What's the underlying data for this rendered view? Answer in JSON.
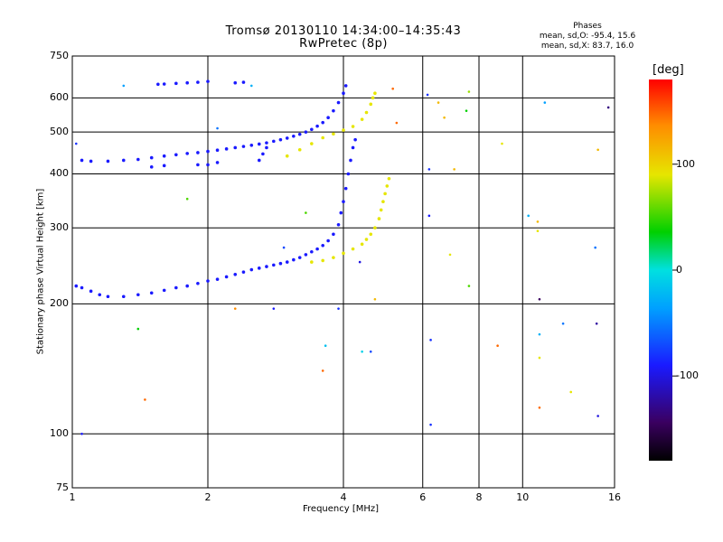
{
  "chart_data": {
    "type": "scatter",
    "title": "Tromsø 20130110 14:34:00–14:35:43",
    "subtitle": "RwPretec (8p)",
    "xlabel": "Frequency [MHz]",
    "ylabel": "Stationary phase Virtual Height [km]",
    "xscale": "log",
    "yscale": "log",
    "xlim": [
      1,
      16
    ],
    "ylim": [
      75,
      750
    ],
    "x_ticks": [
      "1",
      "2",
      "4",
      "6",
      "8",
      "10",
      "16"
    ],
    "y_ticks": [
      "75",
      "100",
      "200",
      "300",
      "400",
      "500",
      "600",
      "750"
    ],
    "grid": true,
    "colorbar": {
      "label": "[deg]",
      "range": [
        -180,
        180
      ],
      "ticks": [
        "100",
        "0",
        "-100"
      ]
    },
    "stats": {
      "heading": "Phases",
      "line_o": "mean, sd,O: -95.4, 15.6",
      "line_x": "mean, sd,X: 83.7, 16.0"
    },
    "series": [
      {
        "mode": "O",
        "color_value": -100,
        "points": [
          [
            1.02,
            220
          ],
          [
            1.05,
            218
          ],
          [
            1.1,
            214
          ],
          [
            1.15,
            210
          ],
          [
            1.2,
            208
          ],
          [
            1.3,
            208
          ],
          [
            1.4,
            210
          ],
          [
            1.5,
            212
          ],
          [
            1.6,
            215
          ],
          [
            1.7,
            218
          ],
          [
            1.8,
            220
          ],
          [
            1.9,
            223
          ],
          [
            2.0,
            226
          ],
          [
            2.1,
            228
          ],
          [
            2.2,
            231
          ],
          [
            2.3,
            234
          ],
          [
            2.4,
            237
          ],
          [
            2.5,
            240
          ],
          [
            2.6,
            242
          ],
          [
            2.7,
            244
          ],
          [
            2.8,
            246
          ],
          [
            2.9,
            248
          ],
          [
            3.0,
            250
          ],
          [
            3.1,
            253
          ],
          [
            3.2,
            256
          ],
          [
            3.3,
            260
          ],
          [
            3.4,
            264
          ],
          [
            3.5,
            268
          ],
          [
            3.6,
            273
          ],
          [
            3.7,
            280
          ],
          [
            3.8,
            290
          ],
          [
            3.9,
            305
          ],
          [
            3.95,
            325
          ],
          [
            4.0,
            345
          ],
          [
            4.05,
            370
          ],
          [
            4.1,
            400
          ],
          [
            4.15,
            430
          ],
          [
            4.2,
            460
          ],
          [
            4.25,
            480
          ],
          [
            1.05,
            430
          ],
          [
            1.1,
            428
          ],
          [
            1.2,
            428
          ],
          [
            1.3,
            430
          ],
          [
            1.4,
            432
          ],
          [
            1.5,
            436
          ],
          [
            1.6,
            440
          ],
          [
            1.7,
            443
          ],
          [
            1.8,
            446
          ],
          [
            1.9,
            448
          ],
          [
            2.0,
            451
          ],
          [
            2.1,
            454
          ],
          [
            2.2,
            457
          ],
          [
            2.3,
            460
          ],
          [
            2.4,
            463
          ],
          [
            2.5,
            466
          ],
          [
            2.6,
            469
          ],
          [
            2.7,
            472
          ],
          [
            2.8,
            476
          ],
          [
            2.9,
            480
          ],
          [
            3.0,
            484
          ],
          [
            3.1,
            489
          ],
          [
            3.2,
            494
          ],
          [
            3.3,
            500
          ],
          [
            3.4,
            507
          ],
          [
            3.5,
            516
          ],
          [
            3.6,
            526
          ],
          [
            3.7,
            540
          ],
          [
            3.8,
            560
          ],
          [
            3.9,
            585
          ],
          [
            4.0,
            615
          ],
          [
            4.05,
            640
          ],
          [
            1.55,
            645
          ],
          [
            1.6,
            646
          ],
          [
            1.7,
            648
          ],
          [
            1.8,
            650
          ],
          [
            1.9,
            652
          ],
          [
            2.0,
            655
          ],
          [
            2.3,
            650
          ],
          [
            2.4,
            652
          ],
          [
            1.9,
            420
          ],
          [
            2.0,
            420
          ],
          [
            2.1,
            425
          ],
          [
            1.5,
            415
          ],
          [
            1.6,
            418
          ],
          [
            2.6,
            430
          ],
          [
            2.65,
            445
          ],
          [
            2.7,
            460
          ]
        ]
      },
      {
        "mode": "X",
        "color_value": 100,
        "points": [
          [
            3.4,
            250
          ],
          [
            3.6,
            252
          ],
          [
            3.8,
            256
          ],
          [
            4.0,
            262
          ],
          [
            4.2,
            268
          ],
          [
            4.4,
            275
          ],
          [
            4.5,
            282
          ],
          [
            4.6,
            290
          ],
          [
            4.7,
            300
          ],
          [
            4.8,
            315
          ],
          [
            4.85,
            330
          ],
          [
            4.9,
            345
          ],
          [
            4.95,
            360
          ],
          [
            5.0,
            375
          ],
          [
            5.05,
            390
          ],
          [
            3.0,
            440
          ],
          [
            3.2,
            455
          ],
          [
            3.4,
            470
          ],
          [
            3.6,
            485
          ],
          [
            3.8,
            495
          ],
          [
            4.0,
            505
          ],
          [
            4.2,
            515
          ],
          [
            4.4,
            535
          ],
          [
            4.5,
            555
          ],
          [
            4.6,
            580
          ],
          [
            4.65,
            600
          ],
          [
            4.7,
            615
          ]
        ]
      },
      {
        "mode": "scatter",
        "points": [
          [
            1.02,
            470,
            -90
          ],
          [
            1.05,
            100,
            -100
          ],
          [
            1.3,
            640,
            -40
          ],
          [
            1.4,
            175,
            40
          ],
          [
            1.45,
            120,
            150
          ],
          [
            1.8,
            350,
            60
          ],
          [
            2.1,
            510,
            -60
          ],
          [
            2.3,
            195,
            140
          ],
          [
            2.5,
            640,
            -30
          ],
          [
            2.8,
            195,
            -100
          ],
          [
            2.95,
            270,
            -80
          ],
          [
            3.3,
            325,
            60
          ],
          [
            3.6,
            140,
            150
          ],
          [
            3.65,
            160,
            -20
          ],
          [
            3.9,
            195,
            -90
          ],
          [
            4.35,
            250,
            -110
          ],
          [
            4.4,
            155,
            -10
          ],
          [
            4.6,
            155,
            -80
          ],
          [
            4.7,
            205,
            120
          ],
          [
            5.15,
            630,
            150
          ],
          [
            5.25,
            525,
            150
          ],
          [
            6.15,
            610,
            -90
          ],
          [
            6.2,
            410,
            -90
          ],
          [
            6.2,
            320,
            -100
          ],
          [
            6.25,
            165,
            -90
          ],
          [
            6.25,
            105,
            -90
          ],
          [
            6.5,
            585,
            120
          ],
          [
            6.7,
            540,
            120
          ],
          [
            6.9,
            260,
            100
          ],
          [
            7.05,
            410,
            120
          ],
          [
            7.5,
            560,
            40
          ],
          [
            7.6,
            620,
            80
          ],
          [
            7.6,
            220,
            60
          ],
          [
            8.8,
            160,
            150
          ],
          [
            9.0,
            470,
            100
          ],
          [
            10.3,
            320,
            -30
          ],
          [
            10.8,
            310,
            120
          ],
          [
            10.8,
            295,
            100
          ],
          [
            10.9,
            205,
            -150
          ],
          [
            10.9,
            170,
            -30
          ],
          [
            10.9,
            150,
            100
          ],
          [
            10.9,
            115,
            150
          ],
          [
            11.2,
            585,
            -40
          ],
          [
            12.3,
            180,
            -60
          ],
          [
            12.8,
            125,
            100
          ],
          [
            14.5,
            270,
            -60
          ],
          [
            14.6,
            180,
            -130
          ],
          [
            14.7,
            110,
            -110
          ],
          [
            14.7,
            455,
            120
          ],
          [
            15.5,
            570,
            -140
          ]
        ]
      }
    ]
  }
}
